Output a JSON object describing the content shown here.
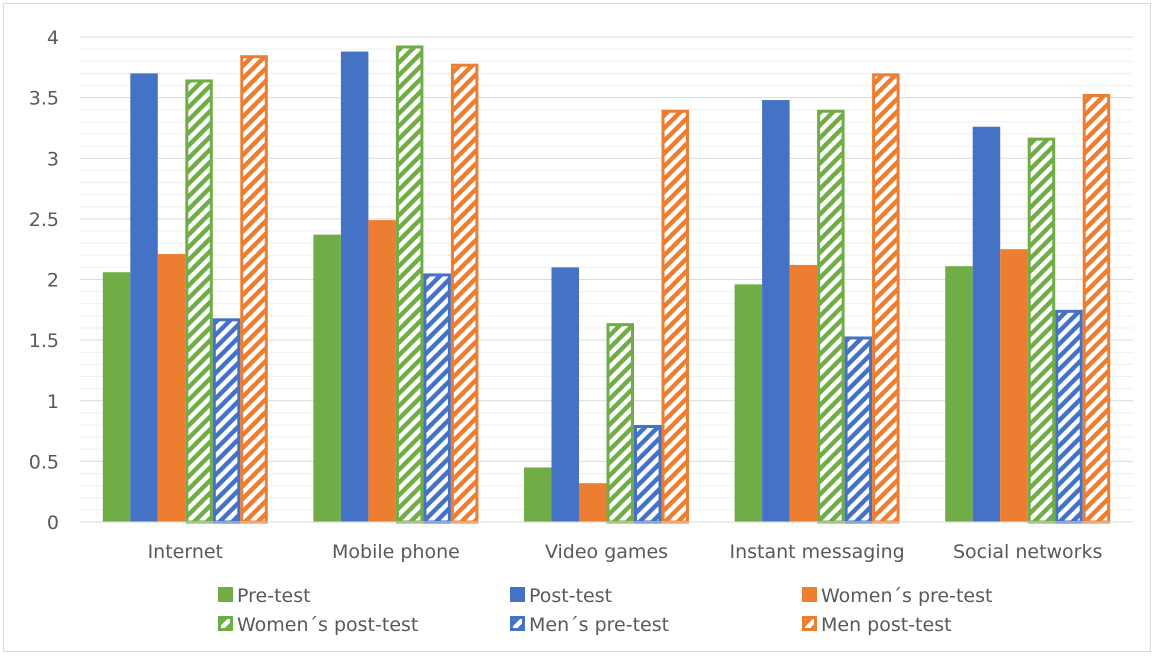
{
  "chart_data": {
    "type": "bar",
    "categories": [
      "Internet",
      "Mobile phone",
      "Video games",
      "Instant messaging",
      "Social networks"
    ],
    "ylim": [
      0,
      4
    ],
    "yticks": [
      "0",
      "0.5",
      "1",
      "1.5",
      "2",
      "2.5",
      "3",
      "3.5",
      "4"
    ],
    "grid": true,
    "legend_position": "bottom",
    "series": [
      {
        "name": "Pre-test",
        "color": "#70ad47",
        "pattern": "solid",
        "values": [
          2.06,
          2.37,
          0.45,
          1.96,
          2.11
        ]
      },
      {
        "name": "Post-test",
        "color": "#4472c4",
        "pattern": "solid",
        "values": [
          3.7,
          3.88,
          2.1,
          3.48,
          3.26
        ]
      },
      {
        "name": "Women´s pre-test",
        "color": "#ed7d31",
        "pattern": "solid",
        "values": [
          2.21,
          2.49,
          0.32,
          2.12,
          2.25
        ]
      },
      {
        "name": "Women´s post-test",
        "color": "#70ad47",
        "pattern": "hatched",
        "values": [
          3.65,
          3.93,
          1.64,
          3.4,
          3.17
        ]
      },
      {
        "name": "Men´s pre-test",
        "color": "#4472c4",
        "pattern": "hatched",
        "values": [
          1.68,
          2.05,
          0.8,
          1.53,
          1.75
        ]
      },
      {
        "name": "Men post-test",
        "color": "#ed7d31",
        "pattern": "hatched",
        "values": [
          3.85,
          3.78,
          3.4,
          3.7,
          3.53
        ]
      }
    ]
  }
}
